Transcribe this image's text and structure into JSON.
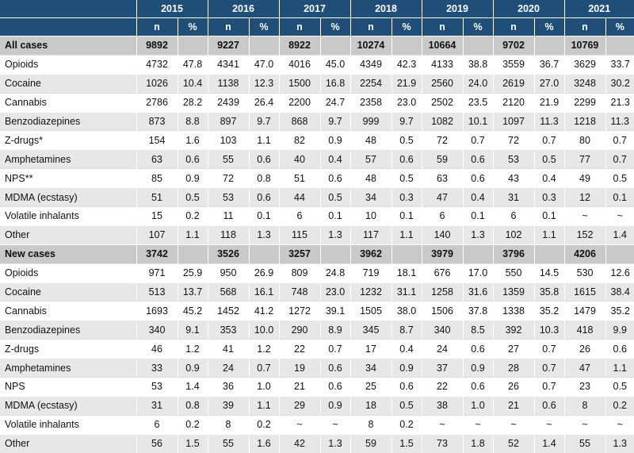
{
  "years": [
    "2015",
    "2016",
    "2017",
    "2018",
    "2019",
    "2020",
    "2021"
  ],
  "subheaders": {
    "n": "n",
    "pct": "%"
  },
  "rows": [
    {
      "type": "section",
      "label": "All cases",
      "cells": [
        "9892",
        "",
        "9227",
        "",
        "8922",
        "",
        "10274",
        "",
        "10664",
        "",
        "9702",
        "",
        "10769",
        ""
      ]
    },
    {
      "type": "data",
      "label": "Opioids",
      "cells": [
        "4732",
        "47.8",
        "4341",
        "47.0",
        "4016",
        "45.0",
        "4349",
        "42.3",
        "4133",
        "38.8",
        "3559",
        "36.7",
        "3629",
        "33.7"
      ]
    },
    {
      "type": "data",
      "label": "Cocaine",
      "cells": [
        "1026",
        "10.4",
        "1138",
        "12.3",
        "1500",
        "16.8",
        "2254",
        "21.9",
        "2560",
        "24.0",
        "2619",
        "27.0",
        "3248",
        "30.2"
      ]
    },
    {
      "type": "data",
      "label": "Cannabis",
      "cells": [
        "2786",
        "28.2",
        "2439",
        "26.4",
        "2200",
        "24.7",
        "2358",
        "23.0",
        "2502",
        "23.5",
        "2120",
        "21.9",
        "2299",
        "21.3"
      ]
    },
    {
      "type": "data",
      "label": "Benzodiazepines",
      "cells": [
        "873",
        "8.8",
        "897",
        "9.7",
        "868",
        "9.7",
        "999",
        "9.7",
        "1082",
        "10.1",
        "1097",
        "11.3",
        "1218",
        "11.3"
      ]
    },
    {
      "type": "data",
      "label": "Z-drugs*",
      "cells": [
        "154",
        "1.6",
        "103",
        "1.1",
        "82",
        "0.9",
        "48",
        "0.5",
        "72",
        "0.7",
        "72",
        "0.7",
        "80",
        "0.7"
      ]
    },
    {
      "type": "data",
      "label": "Amphetamines",
      "cells": [
        "63",
        "0.6",
        "55",
        "0.6",
        "40",
        "0.4",
        "57",
        "0.6",
        "59",
        "0.6",
        "53",
        "0.5",
        "77",
        "0.7"
      ]
    },
    {
      "type": "data",
      "label": "NPS**",
      "cells": [
        "85",
        "0.9",
        "72",
        "0.8",
        "51",
        "0.6",
        "48",
        "0.5",
        "63",
        "0.6",
        "43",
        "0.4",
        "49",
        "0.5"
      ]
    },
    {
      "type": "data",
      "label": "MDMA (ecstasy)",
      "cells": [
        "51",
        "0.5",
        "53",
        "0.6",
        "44",
        "0.5",
        "34",
        "0.3",
        "47",
        "0.4",
        "31",
        "0.3",
        "12",
        "0.1"
      ]
    },
    {
      "type": "data",
      "label": "Volatile inhalants",
      "cells": [
        "15",
        "0.2",
        "11",
        "0.1",
        "6",
        "0.1",
        "10",
        "0.1",
        "6",
        "0.1",
        "6",
        "0.1",
        "~",
        "~"
      ]
    },
    {
      "type": "data",
      "label": "Other",
      "cells": [
        "107",
        "1.1",
        "118",
        "1.3",
        "115",
        "1.3",
        "117",
        "1.1",
        "140",
        "1.3",
        "102",
        "1.1",
        "152",
        "1.4"
      ]
    },
    {
      "type": "section",
      "label": "New cases",
      "cells": [
        "3742",
        "",
        "3526",
        "",
        "3257",
        "",
        "3962",
        "",
        "3979",
        "",
        "3796",
        "",
        "4206",
        ""
      ]
    },
    {
      "type": "data",
      "label": "Opioids",
      "cells": [
        "971",
        "25.9",
        "950",
        "26.9",
        "809",
        "24.8",
        "719",
        "18.1",
        "676",
        "17.0",
        "550",
        "14.5",
        "530",
        "12.6"
      ]
    },
    {
      "type": "data",
      "label": "Cocaine",
      "cells": [
        "513",
        "13.7",
        "568",
        "16.1",
        "748",
        "23.0",
        "1232",
        "31.1",
        "1258",
        "31.6",
        "1359",
        "35.8",
        "1615",
        "38.4"
      ]
    },
    {
      "type": "data",
      "label": "Cannabis",
      "cells": [
        "1693",
        "45.2",
        "1452",
        "41.2",
        "1272",
        "39.1",
        "1505",
        "38.0",
        "1506",
        "37.8",
        "1338",
        "35.2",
        "1479",
        "35.2"
      ]
    },
    {
      "type": "data",
      "label": "Benzodiazepines",
      "cells": [
        "340",
        "9.1",
        "353",
        "10.0",
        "290",
        "8.9",
        "345",
        "8.7",
        "340",
        "8.5",
        "392",
        "10.3",
        "418",
        "9.9"
      ]
    },
    {
      "type": "data",
      "label": "Z-drugs",
      "cells": [
        "46",
        "1.2",
        "41",
        "1.2",
        "22",
        "0.7",
        "17",
        "0.4",
        "24",
        "0.6",
        "27",
        "0.7",
        "26",
        "0.6"
      ]
    },
    {
      "type": "data",
      "label": "Amphetamines",
      "cells": [
        "33",
        "0.9",
        "24",
        "0.7",
        "19",
        "0.6",
        "34",
        "0.9",
        "37",
        "0.9",
        "28",
        "0.7",
        "47",
        "1.1"
      ]
    },
    {
      "type": "data",
      "label": "NPS",
      "cells": [
        "53",
        "1.4",
        "36",
        "1.0",
        "21",
        "0.6",
        "25",
        "0.6",
        "22",
        "0.6",
        "26",
        "0.7",
        "23",
        "0.5"
      ]
    },
    {
      "type": "data",
      "label": "MDMA (ecstasy)",
      "cells": [
        "31",
        "0.8",
        "39",
        "1.1",
        "29",
        "0.9",
        "18",
        "0.5",
        "38",
        "1.0",
        "21",
        "0.6",
        "8",
        "0.2"
      ]
    },
    {
      "type": "data",
      "label": "Volatile inhalants",
      "cells": [
        "6",
        "0.2",
        "8",
        "0.2",
        "~",
        "~",
        "8",
        "0.2",
        "~",
        "~",
        "~",
        "~",
        "~",
        "~"
      ]
    },
    {
      "type": "data",
      "label": "Other",
      "cells": [
        "56",
        "1.5",
        "55",
        "1.6",
        "42",
        "1.3",
        "59",
        "1.5",
        "73",
        "1.8",
        "52",
        "1.4",
        "55",
        "1.3"
      ]
    }
  ]
}
